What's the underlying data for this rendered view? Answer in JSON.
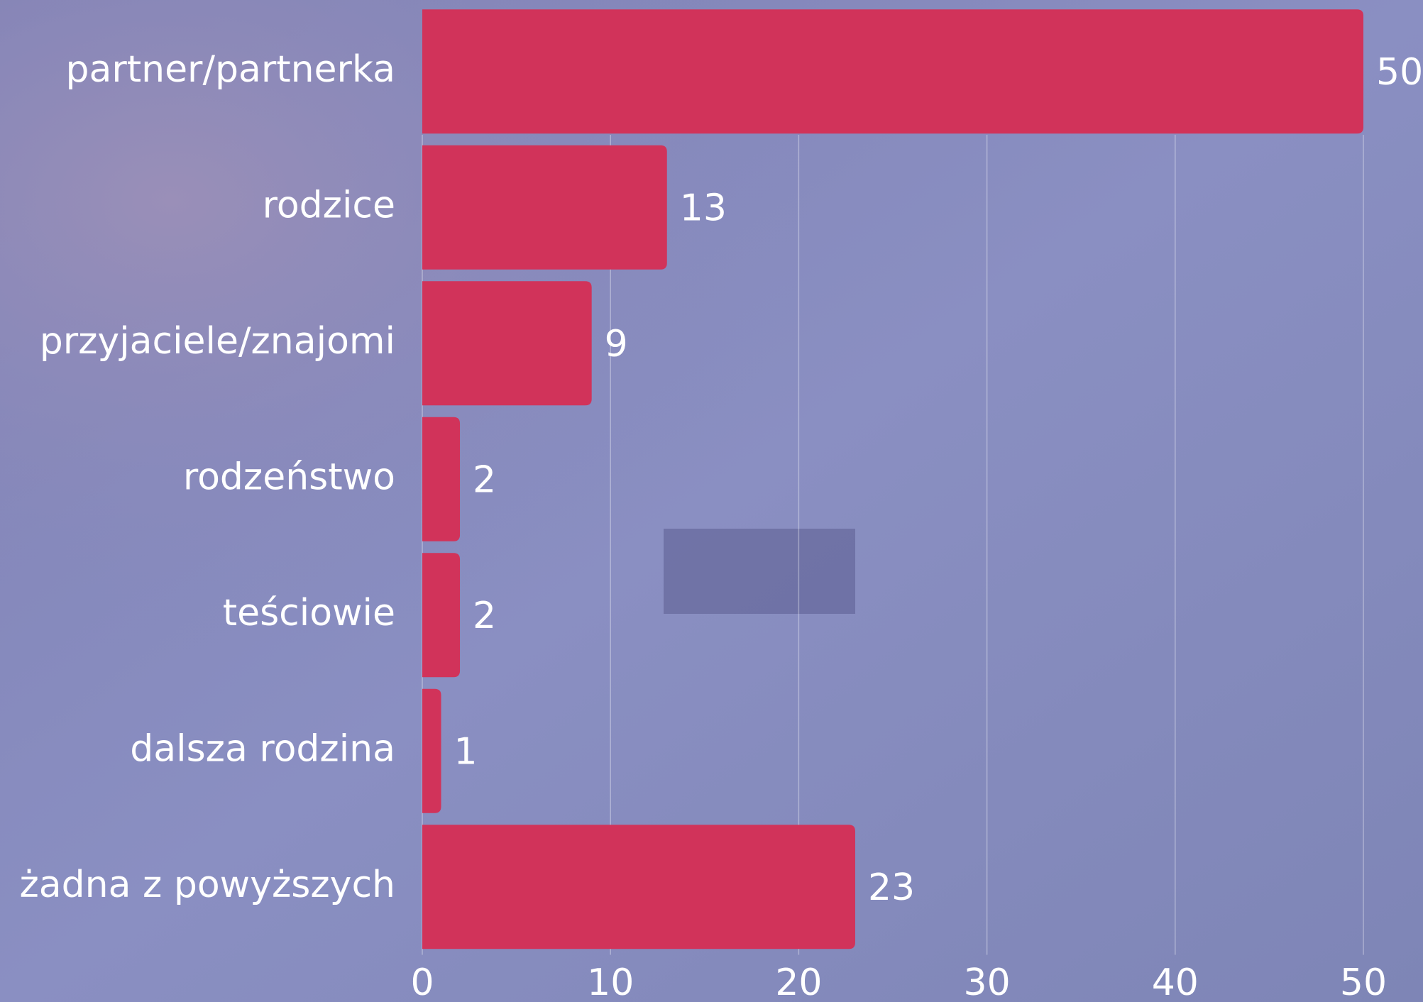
{
  "chart_data": {
    "type": "bar",
    "orientation": "horizontal",
    "categories": [
      "partner/partnerka",
      "rodzice",
      "przyjaciele/znajomi",
      "rodzeństwo",
      "teściowie",
      "dalsza rodzina",
      "żadna z powyższych"
    ],
    "values": [
      50,
      13,
      9,
      2,
      2,
      1,
      23
    ],
    "color": "#d1335a",
    "xlim": [
      0,
      50
    ],
    "xticks": [
      0,
      10,
      20,
      30,
      40,
      50
    ],
    "grid": true
  }
}
